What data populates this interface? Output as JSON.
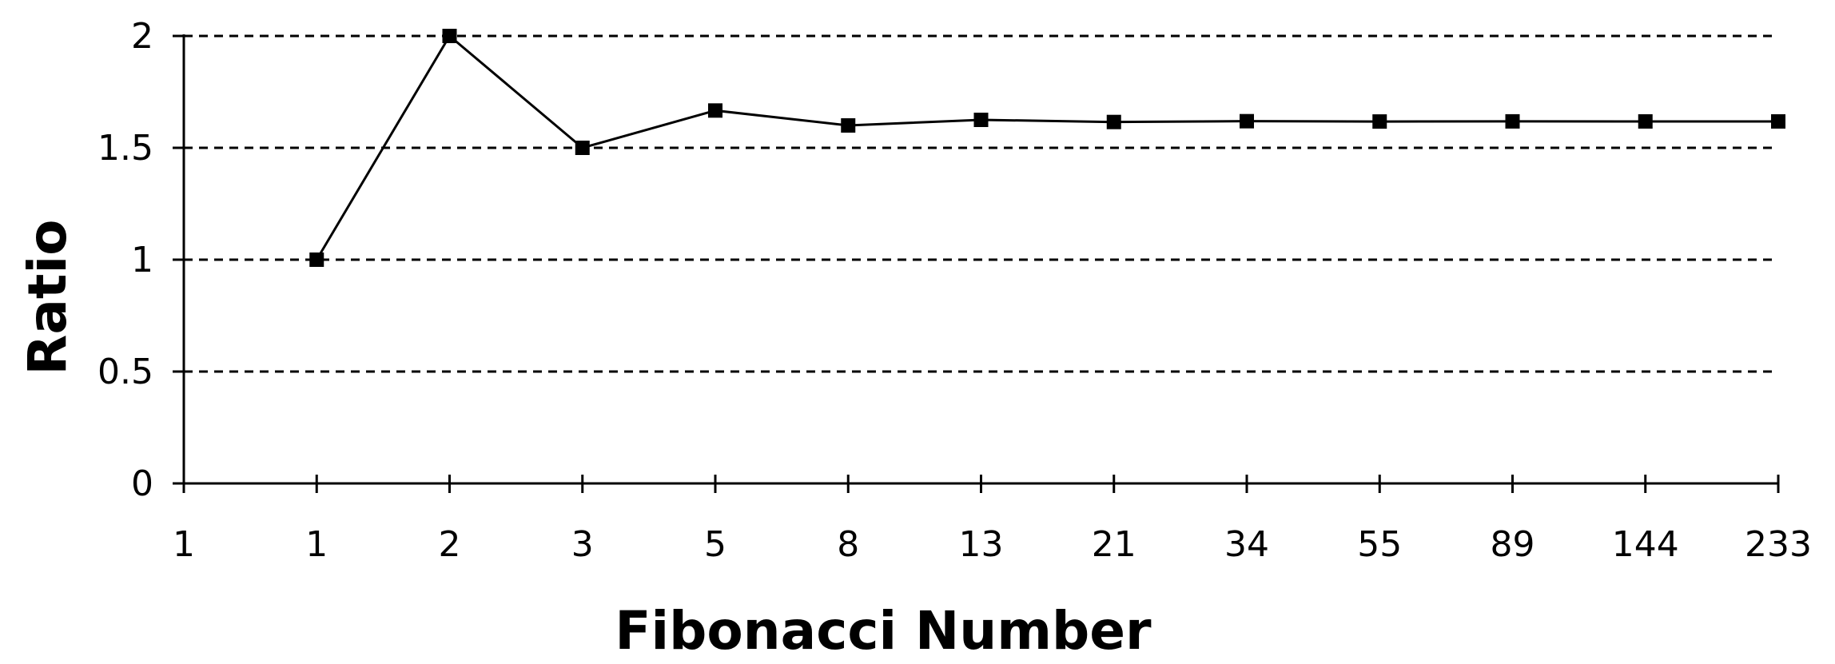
{
  "chart_data": {
    "type": "line",
    "title": "",
    "xlabel": "Fibonacci Number",
    "ylabel": "Ratio",
    "categories": [
      "1",
      "1",
      "2",
      "3",
      "5",
      "8",
      "13",
      "21",
      "34",
      "55",
      "89",
      "144",
      "233"
    ],
    "series": [
      {
        "values": [
          null,
          1,
          2,
          1.5,
          1.6667,
          1.6,
          1.625,
          1.6154,
          1.619,
          1.6176,
          1.6182,
          1.618,
          1.618
        ]
      }
    ],
    "yticks": [
      "0",
      "0.5",
      "1",
      "1.5",
      "2"
    ],
    "ylim": [
      0,
      2
    ],
    "grid": "horizontal-dashed",
    "marker": "square",
    "colors": {
      "line": "#000000",
      "grid": "#000000",
      "background": "#ffffff"
    }
  }
}
